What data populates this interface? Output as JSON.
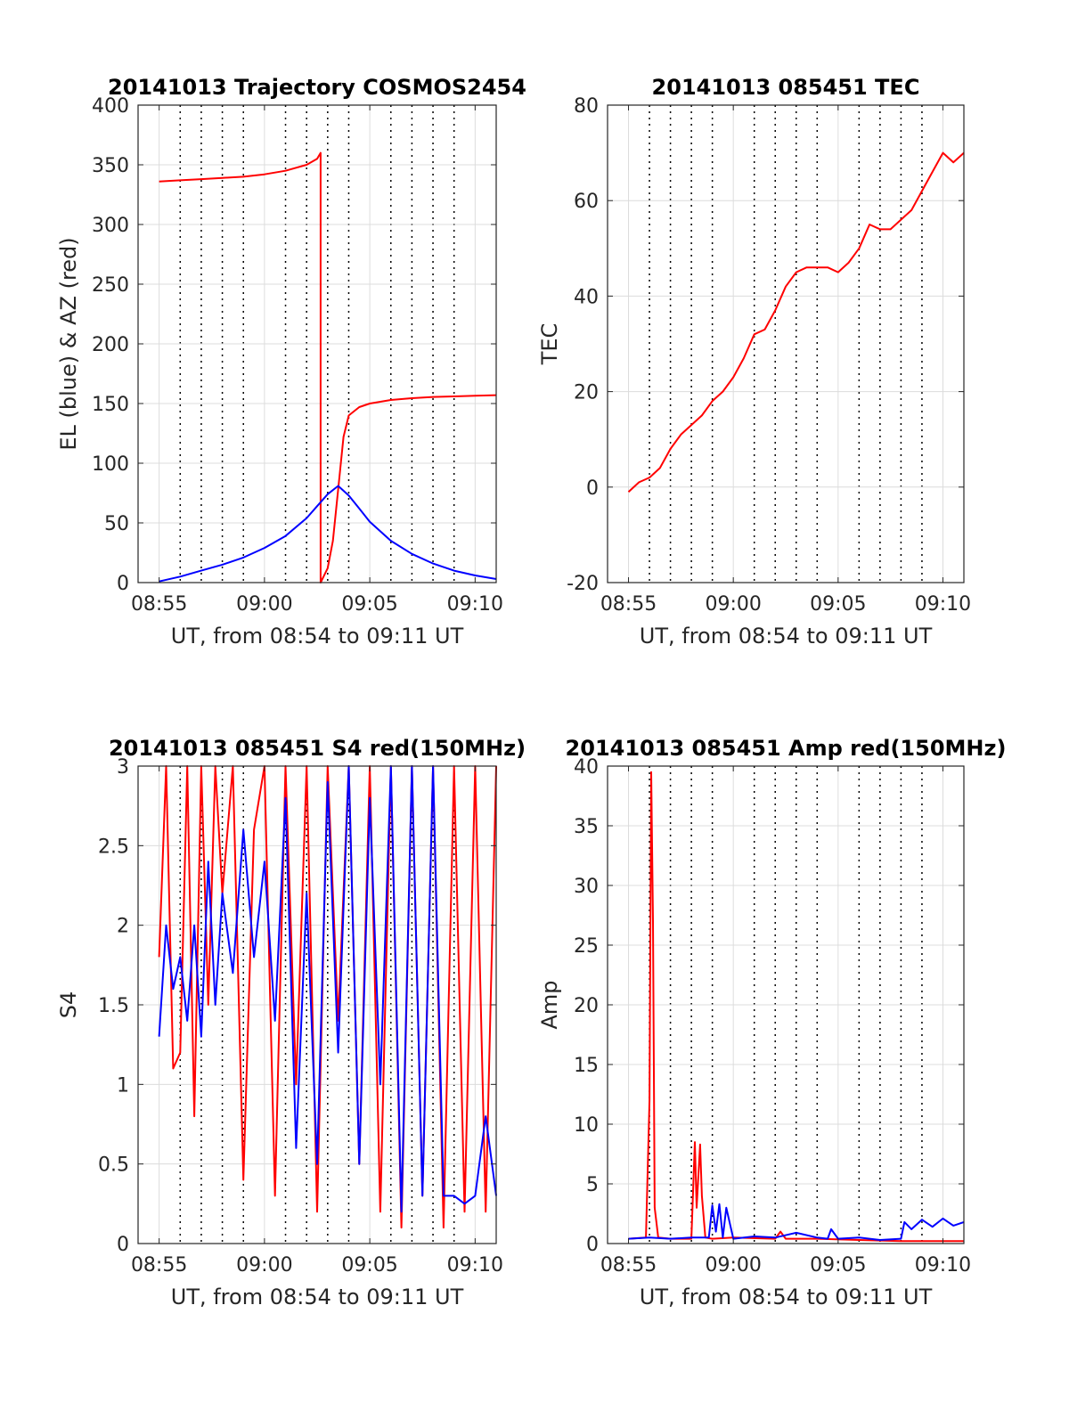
{
  "chart_data": [
    {
      "type": "line",
      "title": "20141013 Trajectory COSMOS2454",
      "xlabel": "UT, from 08:54 to 09:11 UT",
      "ylabel": "EL (blue) & AZ (red)",
      "x_tick_labels": [
        "08:55",
        "09:00",
        "09:05",
        "09:10"
      ],
      "y_tick_labels": [
        "0",
        "50",
        "100",
        "150",
        "200",
        "250",
        "300",
        "350",
        "400"
      ],
      "xlim": [
        "08:54",
        "09:11"
      ],
      "ylim": [
        0,
        400
      ],
      "grid": "on",
      "series": [
        {
          "color": "#ff0000",
          "x": [
            "08:55",
            "08:56",
            "08:57",
            "08:58",
            "08:59",
            "09:00",
            "09:01",
            "09:02",
            "09:02:30",
            "09:02:40",
            "09:02:40",
            "09:03:00",
            "09:03:15",
            "09:03:30",
            "09:03:45",
            "09:04:00",
            "09:04:30",
            "09:05",
            "09:06",
            "09:07",
            "09:08",
            "09:09",
            "09:10",
            "09:11"
          ],
          "values": [
            336,
            337,
            338,
            339,
            340,
            342,
            345,
            350,
            355,
            360,
            0,
            12,
            35,
            78,
            122,
            140,
            147,
            150,
            153,
            154.5,
            155.5,
            156,
            156.5,
            157
          ]
        },
        {
          "color": "#0000ff",
          "x": [
            "08:55",
            "08:56",
            "08:57",
            "08:58",
            "08:59",
            "09:00",
            "09:01",
            "09:02",
            "09:02:30",
            "09:03",
            "09:03:30",
            "09:04",
            "09:04:30",
            "09:05",
            "09:06",
            "09:07",
            "09:08",
            "09:09",
            "09:10",
            "09:11"
          ],
          "values": [
            1,
            5,
            10,
            15,
            21,
            29,
            39,
            54,
            64,
            74,
            81,
            73,
            62,
            51,
            35,
            24,
            16,
            10,
            6,
            3
          ]
        }
      ]
    },
    {
      "type": "line",
      "title": "20141013 085451 TEC",
      "xlabel": "UT, from 08:54 to 09:11 UT",
      "ylabel": "TEC",
      "x_tick_labels": [
        "08:55",
        "09:00",
        "09:05",
        "09:10"
      ],
      "y_tick_labels": [
        "-20",
        "0",
        "20",
        "40",
        "60",
        "80"
      ],
      "xlim": [
        "08:54",
        "09:11"
      ],
      "ylim": [
        -20,
        80
      ],
      "grid": "on",
      "series": [
        {
          "color": "#ff0000",
          "x": [
            "08:55",
            "08:55:30",
            "08:56",
            "08:56:30",
            "08:57",
            "08:57:30",
            "08:58",
            "08:58:30",
            "08:59",
            "08:59:30",
            "09:00",
            "09:00:30",
            "09:01",
            "09:01:30",
            "09:02",
            "09:02:30",
            "09:03",
            "09:03:30",
            "09:04",
            "09:04:30",
            "09:05",
            "09:05:30",
            "09:06",
            "09:06:30",
            "09:07",
            "09:07:30",
            "09:08",
            "09:08:30",
            "09:09",
            "09:09:30",
            "09:10",
            "09:10:30",
            "09:11"
          ],
          "values": [
            -1,
            1,
            2,
            4,
            8,
            11,
            13,
            15,
            18,
            20,
            23,
            27,
            32,
            33,
            37,
            42,
            45,
            46,
            46,
            46,
            45,
            47,
            50,
            55,
            54,
            54,
            56,
            58,
            62,
            66,
            70,
            68,
            70
          ]
        }
      ]
    },
    {
      "type": "line",
      "title": "20141013 085451 S4 red(150MHz)",
      "xlabel": "UT, from 08:54 to 09:11 UT",
      "ylabel": "S4",
      "x_tick_labels": [
        "08:55",
        "09:00",
        "09:05",
        "09:10"
      ],
      "y_tick_labels": [
        "0",
        "0.5",
        "1",
        "1.5",
        "2",
        "2.5",
        "3"
      ],
      "xlim": [
        "08:54",
        "09:11"
      ],
      "ylim": [
        0,
        3
      ],
      "grid": "on",
      "series": [
        {
          "color": "#ff0000",
          "x": [
            "08:55",
            "08:55:20",
            "08:55:40",
            "08:56",
            "08:56:20",
            "08:56:40",
            "08:57",
            "08:57:20",
            "08:57:40",
            "08:58",
            "08:58:30",
            "08:59",
            "08:59:30",
            "09:00",
            "09:00:30",
            "09:01",
            "09:01:30",
            "09:02",
            "09:02:30",
            "09:03",
            "09:03:30",
            "09:04",
            "09:04:30",
            "09:05",
            "09:05:30",
            "09:06",
            "09:06:30",
            "09:07",
            "09:07:30",
            "09:08",
            "09:08:30",
            "09:09",
            "09:09:30",
            "09:10",
            "09:10:30",
            "09:11"
          ],
          "values": [
            1.8,
            3,
            1.1,
            1.2,
            3,
            0.8,
            3,
            1.5,
            3,
            2.2,
            3,
            0.4,
            2.6,
            3,
            0.3,
            3,
            1.0,
            3,
            0.2,
            3,
            1.4,
            3,
            0.5,
            3,
            0.2,
            3,
            0.1,
            3,
            0.3,
            3,
            0.1,
            3,
            0.2,
            3,
            0.2,
            3
          ]
        },
        {
          "color": "#0000ff",
          "x": [
            "08:55",
            "08:55:20",
            "08:55:40",
            "08:56",
            "08:56:20",
            "08:56:40",
            "08:57",
            "08:57:20",
            "08:57:40",
            "08:58",
            "08:58:30",
            "08:59",
            "08:59:30",
            "09:00",
            "09:00:30",
            "09:01",
            "09:01:30",
            "09:02",
            "09:02:30",
            "09:03",
            "09:03:30",
            "09:04",
            "09:04:30",
            "09:05",
            "09:05:30",
            "09:06",
            "09:06:30",
            "09:07",
            "09:07:30",
            "09:08",
            "09:08:30",
            "09:09",
            "09:09:30",
            "09:10",
            "09:10:30",
            "09:11"
          ],
          "values": [
            1.3,
            2.0,
            1.6,
            1.8,
            1.4,
            2.0,
            1.3,
            2.4,
            1.5,
            2.2,
            1.7,
            2.6,
            1.8,
            2.4,
            1.4,
            2.8,
            0.6,
            2.2,
            0.5,
            2.9,
            1.2,
            3,
            0.5,
            2.8,
            1.0,
            3,
            0.2,
            3,
            0.3,
            3,
            0.3,
            0.3,
            0.25,
            0.3,
            0.8,
            0.3
          ]
        }
      ]
    },
    {
      "type": "line",
      "title": "20141013 085451 Amp red(150MHz)",
      "xlabel": "UT, from 08:54 to 09:11 UT",
      "ylabel": "Amp",
      "x_tick_labels": [
        "08:55",
        "09:00",
        "09:05",
        "09:10"
      ],
      "y_tick_labels": [
        "0",
        "5",
        "10",
        "15",
        "20",
        "25",
        "30",
        "35",
        "40"
      ],
      "xlim": [
        "08:54",
        "09:11"
      ],
      "ylim": [
        0,
        40
      ],
      "grid": "on",
      "series": [
        {
          "color": "#ff0000",
          "x": [
            "08:55",
            "08:55:50",
            "08:56:00",
            "08:56:05",
            "08:56:10",
            "08:56:15",
            "08:56:25",
            "08:57",
            "08:58",
            "08:58:10",
            "08:58:15",
            "08:58:25",
            "08:58:30",
            "08:58:40",
            "08:59",
            "09:00",
            "09:02",
            "09:02:15",
            "09:02:30",
            "09:04",
            "09:06",
            "09:08",
            "09:10",
            "09:11"
          ],
          "values": [
            0.4,
            0.5,
            12,
            39.5,
            27,
            3,
            0.5,
            0.4,
            0.4,
            8.5,
            3,
            8.3,
            4,
            0.5,
            0.4,
            0.5,
            0.4,
            1.0,
            0.4,
            0.4,
            0.3,
            0.2,
            0.2,
            0.2
          ]
        },
        {
          "color": "#0000ff",
          "x": [
            "08:55",
            "08:56",
            "08:57",
            "08:58",
            "08:58:50",
            "08:59:00",
            "08:59:10",
            "08:59:20",
            "08:59:30",
            "08:59:40",
            "09:00",
            "09:01",
            "09:02",
            "09:03",
            "09:04",
            "09:04:30",
            "09:04:40",
            "09:05",
            "09:06",
            "09:07",
            "09:08",
            "09:08:10",
            "09:08:30",
            "09:09",
            "09:09:30",
            "09:10",
            "09:10:30",
            "09:11"
          ],
          "values": [
            0.4,
            0.5,
            0.4,
            0.5,
            0.5,
            3.2,
            1,
            3.3,
            0.5,
            3.0,
            0.4,
            0.6,
            0.5,
            0.9,
            0.5,
            0.4,
            1.2,
            0.4,
            0.5,
            0.3,
            0.4,
            1.8,
            1.2,
            2.0,
            1.4,
            2.1,
            1.5,
            1.8
          ]
        }
      ]
    }
  ]
}
